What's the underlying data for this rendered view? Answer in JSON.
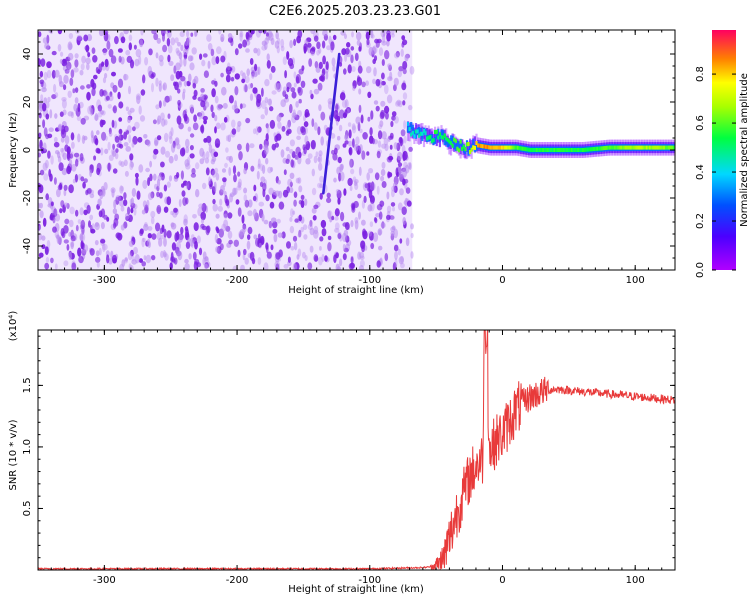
{
  "title": "C2E6.2025.203.23.23.G01",
  "colors": {
    "snr_line": "#e83a3a",
    "spectrogram_noise": "#7a1fe0",
    "spectrogram_noise_light": "#e4d2fb",
    "occultation_streak": "#3b1fd8"
  },
  "colorbar": {
    "label": "Normalized spectral amplitude",
    "colormap": "rainbow (magenta high, violet low)",
    "ticks": [
      "0.0",
      "0.2",
      "0.4",
      "0.6",
      "0.8"
    ],
    "range": [
      0.0,
      0.98
    ]
  },
  "chart_data": [
    {
      "type": "heatmap",
      "title": "",
      "xlabel": "Height of straight line (km)",
      "ylabel": "Frequency (Hz)",
      "xlim": [
        -350,
        130
      ],
      "ylim": [
        -50,
        50
      ],
      "x_ticks": [
        "-300",
        "-200",
        "-100",
        "0",
        "100"
      ],
      "y_ticks": [
        "-40",
        "-20",
        "0",
        "20",
        "40"
      ],
      "grid": false,
      "noise_region": {
        "x_range": [
          -350,
          -68
        ],
        "freq_range": [
          -50,
          50
        ],
        "amplitude": 0.1
      },
      "streak": {
        "points": [
          [
            -135,
            -18
          ],
          [
            -123,
            40
          ]
        ],
        "amplitude": 0.2
      },
      "signal_ridge": {
        "x": [
          -72,
          -65,
          -55,
          -50,
          -45,
          -40,
          -35,
          -30,
          -25,
          -20,
          -10,
          0,
          10,
          20,
          40,
          60,
          80,
          100,
          120,
          130
        ],
        "freq": [
          9,
          7,
          5,
          6,
          5,
          3,
          2,
          1,
          1,
          2,
          1,
          1,
          1,
          0,
          0,
          0,
          1,
          1,
          1,
          1
        ],
        "amplitude": [
          0.4,
          0.45,
          0.5,
          0.55,
          0.5,
          0.55,
          0.6,
          0.6,
          0.7,
          0.85,
          0.85,
          0.8,
          0.6,
          0.55,
          0.55,
          0.55,
          0.6,
          0.7,
          0.65,
          0.6
        ]
      }
    },
    {
      "type": "line",
      "title": "",
      "xlabel": "Height of straight line (km)",
      "ylabel": "SNR (10 * v/v)",
      "y_multiplier": "(x10⁴)",
      "xlim": [
        -350,
        130
      ],
      "ylim": [
        0,
        1.95
      ],
      "x_ticks": [
        "-300",
        "-200",
        "-100",
        "0",
        "100"
      ],
      "y_ticks": [
        "0.5",
        "1.0",
        "1.5"
      ],
      "grid": false,
      "series": [
        {
          "x": [
            -350,
            -300,
            -250,
            -200,
            -150,
            -100,
            -60,
            -50,
            -45,
            -40,
            -35,
            -30,
            -25,
            -20,
            -15,
            -12,
            -10,
            -5,
            0,
            5,
            10,
            20,
            30,
            40,
            50,
            60,
            70,
            80,
            90,
            100,
            110,
            120,
            130
          ],
          "y": [
            0.01,
            0.01,
            0.01,
            0.01,
            0.01,
            0.01,
            0.02,
            0.03,
            0.08,
            0.25,
            0.45,
            0.6,
            0.75,
            0.85,
            0.9,
            1.95,
            0.95,
            1.05,
            1.1,
            1.2,
            1.3,
            1.4,
            1.45,
            1.47,
            1.46,
            1.45,
            1.44,
            1.43,
            1.42,
            1.41,
            1.4,
            1.39,
            1.38
          ]
        }
      ]
    }
  ]
}
